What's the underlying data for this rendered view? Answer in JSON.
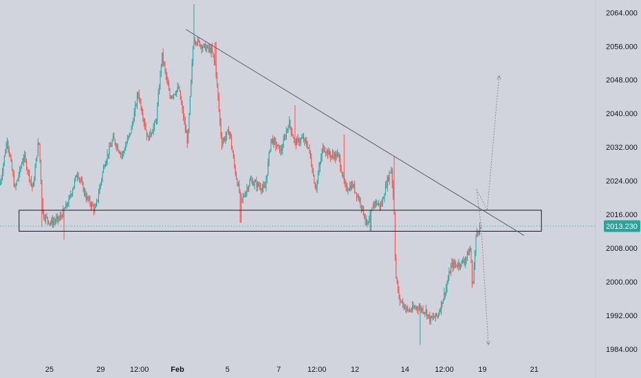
{
  "chart_data": {
    "type": "candlestick",
    "title": "",
    "xlabel": "",
    "ylabel": "",
    "ylim": [
      1982,
      2067
    ],
    "y_ticks": [
      "2064.000",
      "2056.000",
      "2048.000",
      "2040.000",
      "2032.000",
      "2024.000",
      "2016.000",
      "2008.000",
      "2000.000",
      "1992.000",
      "1984.000"
    ],
    "x_ticks": [
      {
        "label": "25",
        "t": 0.083
      },
      {
        "label": "29",
        "t": 0.169
      },
      {
        "label": "12:00",
        "t": 0.234
      },
      {
        "label": "Feb",
        "t": 0.298,
        "bold": true
      },
      {
        "label": "5",
        "t": 0.382
      },
      {
        "label": "7",
        "t": 0.468
      },
      {
        "label": "12:00",
        "t": 0.532
      },
      {
        "label": "12",
        "t": 0.596
      },
      {
        "label": "14",
        "t": 0.68
      },
      {
        "label": "12:00",
        "t": 0.746
      },
      {
        "label": "19",
        "t": 0.81
      },
      {
        "label": "21",
        "t": 0.897
      }
    ],
    "current_price": {
      "label": "2013.230",
      "value": 2013.23
    },
    "colors": {
      "up": "#26a69a",
      "down": "#ef5350",
      "price_tag": "#26a69a",
      "line": "#5d606b"
    },
    "anchors": [
      [
        0.0,
        2023
      ],
      [
        0.012,
        2034
      ],
      [
        0.025,
        2022
      ],
      [
        0.04,
        2030
      ],
      [
        0.055,
        2022
      ],
      [
        0.065,
        2034
      ],
      [
        0.072,
        2016
      ],
      [
        0.085,
        2014
      ],
      [
        0.1,
        2015
      ],
      [
        0.115,
        2019
      ],
      [
        0.13,
        2026
      ],
      [
        0.145,
        2020
      ],
      [
        0.16,
        2017
      ],
      [
        0.175,
        2028
      ],
      [
        0.19,
        2034
      ],
      [
        0.205,
        2030
      ],
      [
        0.22,
        2036
      ],
      [
        0.232,
        2045
      ],
      [
        0.248,
        2034
      ],
      [
        0.262,
        2038
      ],
      [
        0.272,
        2054
      ],
      [
        0.285,
        2044
      ],
      [
        0.3,
        2046
      ],
      [
        0.315,
        2033
      ],
      [
        0.325,
        2058
      ],
      [
        0.34,
        2056
      ],
      [
        0.355,
        2055
      ],
      [
        0.362,
        2051
      ],
      [
        0.372,
        2033
      ],
      [
        0.385,
        2036
      ],
      [
        0.395,
        2026
      ],
      [
        0.405,
        2019
      ],
      [
        0.42,
        2024
      ],
      [
        0.432,
        2023
      ],
      [
        0.445,
        2022
      ],
      [
        0.455,
        2034
      ],
      [
        0.472,
        2031
      ],
      [
        0.485,
        2038
      ],
      [
        0.495,
        2033
      ],
      [
        0.508,
        2034
      ],
      [
        0.518,
        2032
      ],
      [
        0.53,
        2022
      ],
      [
        0.542,
        2032
      ],
      [
        0.555,
        2030
      ],
      [
        0.568,
        2030
      ],
      [
        0.58,
        2022
      ],
      [
        0.592,
        2023
      ],
      [
        0.605,
        2019
      ],
      [
        0.617,
        2013
      ],
      [
        0.628,
        2019
      ],
      [
        0.64,
        2018
      ],
      [
        0.65,
        2024
      ],
      [
        0.657,
        2027
      ],
      [
        0.662,
        2016
      ],
      [
        0.664,
        2002
      ],
      [
        0.67,
        1996
      ],
      [
        0.685,
        1993
      ],
      [
        0.7,
        1994
      ],
      [
        0.715,
        1993
      ],
      [
        0.722,
        1991
      ],
      [
        0.735,
        1992
      ],
      [
        0.748,
        1998
      ],
      [
        0.758,
        2004
      ],
      [
        0.768,
        2004
      ],
      [
        0.78,
        2005
      ],
      [
        0.79,
        2008
      ],
      [
        0.793,
        1998
      ],
      [
        0.8,
        2012
      ],
      [
        0.808,
        2013
      ]
    ],
    "spikes": [
      {
        "t": 0.325,
        "high": 2066
      },
      {
        "t": 0.362,
        "high": 2057
      },
      {
        "t": 0.404,
        "low": 2014
      },
      {
        "t": 0.495,
        "high": 2042
      },
      {
        "t": 0.578,
        "high": 2035
      },
      {
        "t": 0.622,
        "low": 2012
      },
      {
        "t": 0.662,
        "high": 2030
      },
      {
        "t": 0.705,
        "low": 1985
      },
      {
        "t": 0.07,
        "low": 2013
      },
      {
        "t": 0.108,
        "low": 2010
      }
    ],
    "zone": {
      "low": 2012,
      "high": 2017,
      "t_start": 0.032,
      "t_end": 0.909
    },
    "trendline": {
      "from": {
        "t": 0.312,
        "value": 2060
      },
      "to": {
        "t": 0.88,
        "value": 2011
      }
    },
    "projection": {
      "pivot": {
        "t": 0.8,
        "value": 2022
      },
      "up_path": [
        {
          "t": 0.8,
          "value": 2022
        },
        {
          "t": 0.818,
          "value": 2017
        },
        {
          "t": 0.838,
          "value": 2049
        }
      ],
      "down_path": [
        {
          "t": 0.8,
          "value": 2022
        },
        {
          "t": 0.808,
          "value": 2013
        },
        {
          "t": 0.82,
          "value": 1985
        }
      ]
    }
  }
}
